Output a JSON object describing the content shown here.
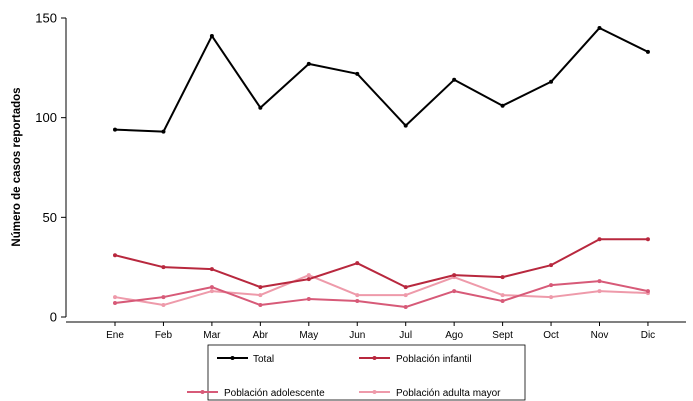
{
  "chart_data": {
    "type": "line",
    "xlabel": "",
    "ylabel": "Número de casos reportados",
    "categories": [
      "Ene",
      "Feb",
      "Mar",
      "Abr",
      "May",
      "Jun",
      "Jul",
      "Ago",
      "Sept",
      "Oct",
      "Nov",
      "Dic"
    ],
    "ylim": [
      0,
      150
    ],
    "yticks": [
      0,
      50,
      100,
      150
    ],
    "grid": false,
    "legend_position": "bottom",
    "series": [
      {
        "name": "Total",
        "color": "#000000",
        "values": [
          94,
          93,
          141,
          105,
          127,
          122,
          96,
          119,
          106,
          118,
          145,
          133
        ]
      },
      {
        "name": "Población infantil",
        "color": "#b8283e",
        "values": [
          31,
          25,
          24,
          15,
          19,
          27,
          15,
          21,
          20,
          26,
          39,
          39
        ]
      },
      {
        "name": "Población adolescente",
        "color": "#d75a78",
        "values": [
          7,
          10,
          15,
          6,
          9,
          8,
          5,
          13,
          8,
          16,
          18,
          13
        ]
      },
      {
        "name": "Población adulta mayor",
        "color": "#ee9aaa",
        "values": [
          10,
          6,
          13,
          11,
          21,
          11,
          11,
          20,
          11,
          10,
          13,
          12
        ]
      }
    ]
  }
}
